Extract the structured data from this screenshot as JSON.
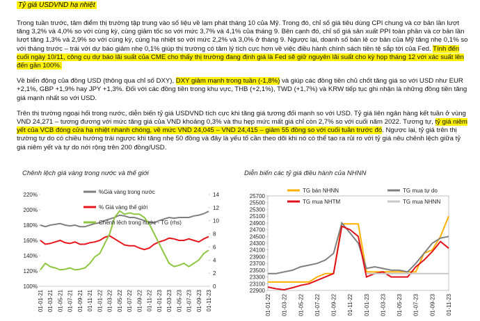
{
  "header": {
    "title": "Tỷ giá USDVND hạ nhiệt"
  },
  "paragraphs": [
    {
      "runs": [
        {
          "text": "Trong tuần trước, tâm điểm thị trường tập trung vào số liệu về lạm phát tháng 10 của Mỹ. Trong đó, chỉ số giá tiêu dùng CPI chung và cơ bản lần lượt tăng 3,2% và 4,0% so với cùng kỳ, cùng giảm tốc so với mức 3,7% và 4,1% của tháng 9. Bên cạnh đó, chỉ số giá sản xuất PPI toàn phần và cơ bản lần lượt tăng 1,3% và 2,9% so với cùng kỳ, cùng hạ nhiệt so với mức 2,2% và 3,0% ở tháng 9. Ngược lại, doanh số bán lẻ cơ bản của Mỹ tăng nhẹ 0,1% so với tháng trước – trái với dự báo giảm nhẹ 0,1% giúp thị trường có tâm lý tích cực hơn về việc điều hành chính sách tiền tệ sắp tới của Fed. ",
          "highlight": false
        },
        {
          "text": "Tính đến cuối ngày 10/11, công cụ dự báo lãi suất của CME cho thấy thị trường đang định giá là Fed sẽ giữ nguyên lãi suất cho kỳ họp tháng 12 với xác suất lên đến gần 100%.",
          "highlight": true
        }
      ]
    },
    {
      "runs": [
        {
          "text": "Về biến động của đồng USD (thông qua chỉ số DXY), ",
          "highlight": false
        },
        {
          "text": "DXY giảm mạnh trong tuần (-1,8%)",
          "highlight": true
        },
        {
          "text": " và giúp các đồng tiền chủ chốt tăng giá so với USD như EUR +2,1%, GBP +1,9% hay JPY +1,3%.  Đối với các đồng tiền trong khu vực, THB (+2,1%), TWD (+1,7%) và KRW tiếp tục ghi nhận là những đồng tiền tăng giá mạnh nhất so với USD.",
          "highlight": false
        }
      ]
    },
    {
      "runs": [
        {
          "text": "Trên thị trường ngoại hối trong nước, diễn biến tỷ giá USDVND tích cực khi tăng giá tương đối mạnh so với USD. Tỷ giá liên ngân hàng kết tuần ở vùng VND 24,271 – tương đương với mức tăng giá của VND khoảng 0,3% và thu hẹp mức mất giá chỉ còn 2,7% so với cuối năm 2022. Tương tự, ",
          "highlight": false
        },
        {
          "text": "tỷ giá niêm yết của VCB đóng cửa hạ nhiệt nhanh chóng, về mức VND 24,045 – VND 24,415 – giảm 55 đồng so với cuối tuần trước đó",
          "highlight": true
        },
        {
          "text": ". Ngược lại, tỷ giá trên thị trường tự do có chiều hướng trái ngược khi tăng nhẹ 50 đồng và đây là yếu tố cần theo dõi khi nó có thể tạo ra rủi ro với tỷ giá nêu chênh lệch giữa tỷ giá niêm yết và tự do nới rộng trên 200 đồng/USD.",
          "highlight": false
        }
      ]
    }
  ],
  "chart_data": [
    {
      "type": "line",
      "title": "Chênh lệch giá vàng trong nước và thế giới",
      "categories": [
        "01-01-21",
        null,
        "01-03-21",
        null,
        "01-05-21",
        null,
        "01-07-21",
        null,
        "01-09-21",
        null,
        "01-11-21",
        null,
        "01-01-22",
        null,
        "01-03-22",
        null,
        "01-05-22",
        null,
        "01-07-22",
        null,
        "01-09-22",
        null,
        "01-11-22",
        null,
        "01-01-23",
        null,
        "01-03-23",
        null,
        "01-05-23",
        null,
        "01-07-23",
        null,
        "01-09-23",
        null,
        "01-11-23"
      ],
      "ylim": [
        100,
        220
      ],
      "yticks": [
        {
          "value": 100,
          "label": "100%"
        },
        {
          "value": 120,
          "label": "120%"
        },
        {
          "value": 140,
          "label": "140%"
        },
        {
          "value": 160,
          "label": "160%"
        },
        {
          "value": 180,
          "label": "180%"
        },
        {
          "value": 200,
          "label": "200%"
        },
        {
          "value": 220,
          "label": "220%"
        }
      ],
      "y2lim": [
        0,
        14
      ],
      "y2ticks": [
        0,
        2,
        4,
        6,
        8,
        10,
        12,
        14
      ],
      "series": [
        {
          "name": "%Giá vàng trong nước",
          "color": "#7f7f7f",
          "values": [
            180,
            178,
            180,
            181,
            182,
            180,
            179,
            180,
            178,
            178,
            180,
            182,
            183,
            186,
            188,
            190,
            193,
            192,
            190,
            190,
            188,
            186,
            184,
            183,
            186,
            188,
            190,
            189,
            190,
            190,
            190,
            192,
            193,
            195,
            198
          ]
        },
        {
          "name": "% Giá vàng thế giới",
          "color": "#e8141c",
          "values": [
            160,
            155,
            156,
            158,
            160,
            157,
            156,
            158,
            155,
            155,
            157,
            158,
            160,
            164,
            166,
            162,
            158,
            154,
            153,
            153,
            150,
            148,
            150,
            155,
            158,
            160,
            163,
            162,
            160,
            160,
            162,
            160,
            158,
            162,
            165
          ]
        },
        {
          "name": "Chênh lệch trong nước - TG (rhs)",
          "color": "#8dc63f",
          "axis": "y2",
          "values": [
            2.5,
            3.5,
            3.0,
            2.8,
            2.5,
            2.6,
            2.8,
            2.5,
            2.6,
            2.8,
            3.5,
            4.5,
            5.0,
            6.5,
            8.0,
            10.5,
            11.5,
            11.0,
            11.2,
            11.0,
            11.0,
            10.5,
            9.5,
            8.0,
            6.5,
            5.0,
            3.5,
            3.0,
            3.2,
            3.5,
            3.0,
            3.5,
            4.0,
            5.0,
            5.5
          ]
        }
      ]
    },
    {
      "type": "line",
      "title": "Diễn biến các tỷ giá điều hành của NHNN",
      "categories": [
        "01-01-22",
        null,
        "01-03-22",
        null,
        "01-05-22",
        null,
        "01-07-22",
        null,
        "01-09-22",
        null,
        "01-11-22",
        null,
        "01-01-23",
        null,
        "01-03-23",
        null,
        "01-05-23",
        null,
        "01-07-23",
        null,
        "01-09-23",
        null,
        "01-11-23"
      ],
      "ylim": [
        22900,
        25700
      ],
      "yticks": [
        22900,
        23100,
        23300,
        23500,
        23700,
        23900,
        24100,
        24300,
        24500,
        24700,
        24900,
        25100,
        25300,
        25500,
        25700
      ],
      "frame": true,
      "series": [
        {
          "name": "TG bán NHNN",
          "color": "#ffb000",
          "values": [
            23150,
            23150,
            23150,
            23150,
            23150,
            23150,
            23300,
            23400,
            23400,
            24870,
            24870,
            24870,
            23450,
            23450,
            23450,
            23450,
            23450,
            23450,
            23450,
            24000,
            24100,
            24500,
            25100
          ]
        },
        {
          "name": "TG mua tự do",
          "color": "#7f7f7f",
          "values": [
            23400,
            23400,
            23450,
            23500,
            23600,
            23650,
            23700,
            23800,
            24000,
            24900,
            24600,
            24300,
            23550,
            23600,
            23550,
            23500,
            23500,
            23450,
            23700,
            24000,
            24300,
            24450,
            24500
          ]
        },
        {
          "name": "TG mua NHTM",
          "color": "#e0101a",
          "values": [
            23000,
            22950,
            22920,
            22980,
            23050,
            23100,
            23200,
            23300,
            23400,
            24800,
            24700,
            24500,
            23300,
            23400,
            23450,
            23300,
            23300,
            23300,
            23600,
            23800,
            24050,
            24350,
            24150
          ]
        },
        {
          "name": "TG mua NHNN",
          "color": "#c8c8c8",
          "values": [
            null,
            null,
            null,
            null,
            null,
            null,
            null,
            null,
            null,
            null,
            null,
            null,
            23400,
            23400,
            23400,
            23400,
            23400,
            23400,
            23400,
            23400,
            23400,
            23400,
            23400
          ]
        }
      ]
    }
  ]
}
